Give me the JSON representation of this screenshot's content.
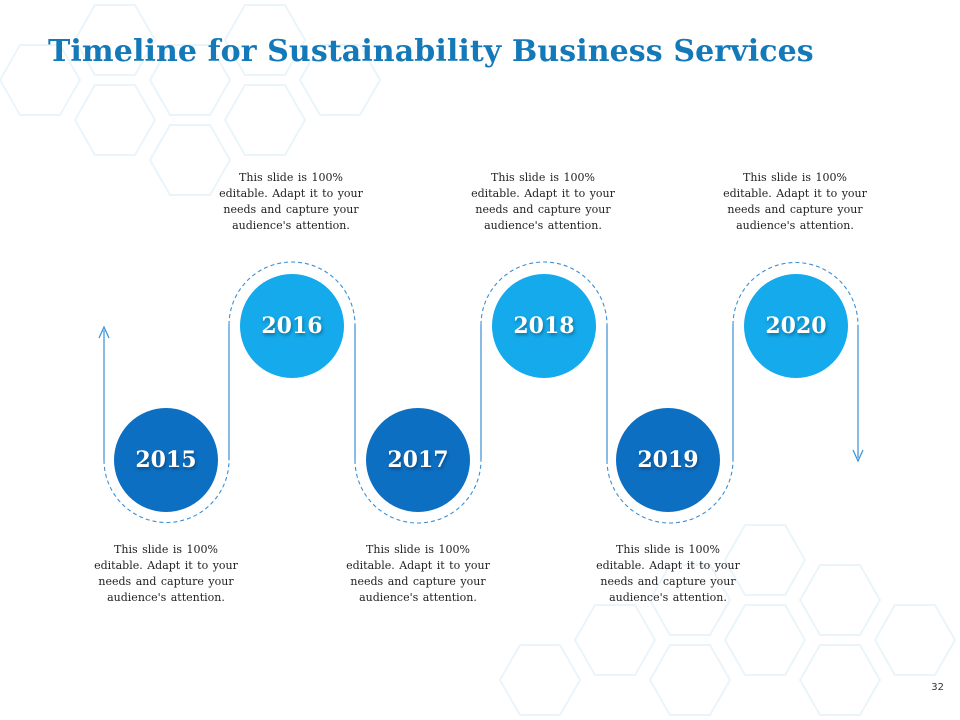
{
  "title": "Timeline for Sustainability Business Services",
  "page_number": "32",
  "colors": {
    "title": "#1479b8",
    "node_low": "#0d6fc2",
    "node_high": "#14aaeb",
    "line": "#3a8fd6"
  },
  "milestones": [
    {
      "year": "2015",
      "text": "This slide is 100% editable. Adapt it to your needs and capture your audience's attention."
    },
    {
      "year": "2016",
      "text": "This slide is 100% editable. Adapt it to your needs and capture your audience's attention."
    },
    {
      "year": "2017",
      "text": "This slide is 100% editable. Adapt it to your needs and capture your audience's attention."
    },
    {
      "year": "2018",
      "text": "This slide is 100% editable. Adapt it to your needs and capture your audience's attention."
    },
    {
      "year": "2019",
      "text": "This slide is 100% editable. Adapt it to your needs and capture your audience's attention."
    },
    {
      "year": "2020",
      "text": "This slide is 100% editable. Adapt it to your needs and capture your audience's attention."
    }
  ]
}
